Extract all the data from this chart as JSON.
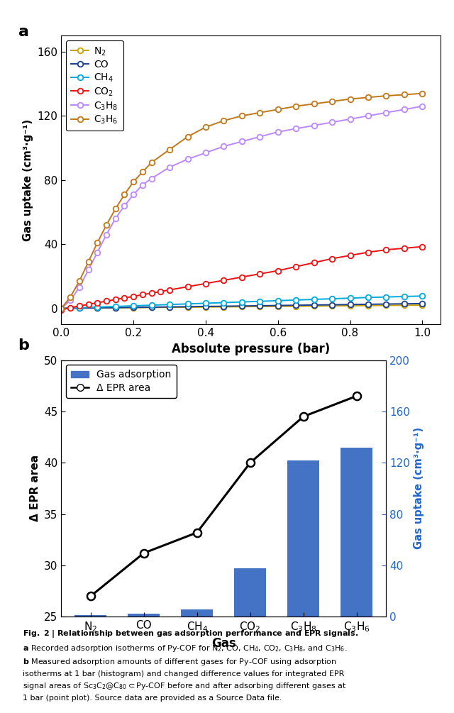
{
  "panel_a": {
    "xlabel": "Absolute pressure (bar)",
    "ylabel": "Gas uptake (cm³·g⁻¹)",
    "xlim": [
      0,
      1.05
    ],
    "ylim": [
      -10,
      170
    ],
    "yticks": [
      0,
      40,
      80,
      120,
      160
    ],
    "xticks": [
      0.0,
      0.2,
      0.4,
      0.6,
      0.8,
      1.0
    ],
    "series": {
      "N2": {
        "color": "#C8A000",
        "label": "N$_2$",
        "x": [
          0.0,
          0.05,
          0.1,
          0.15,
          0.2,
          0.25,
          0.3,
          0.35,
          0.4,
          0.45,
          0.5,
          0.55,
          0.6,
          0.65,
          0.7,
          0.75,
          0.8,
          0.85,
          0.9,
          0.95,
          1.0
        ],
        "y": [
          0.0,
          0.15,
          0.25,
          0.35,
          0.45,
          0.55,
          0.65,
          0.75,
          0.85,
          0.95,
          1.05,
          1.15,
          1.25,
          1.35,
          1.45,
          1.55,
          1.65,
          1.75,
          1.85,
          1.95,
          2.0
        ]
      },
      "CO": {
        "color": "#1a3f8f",
        "label": "CO",
        "x": [
          0.0,
          0.05,
          0.1,
          0.15,
          0.2,
          0.25,
          0.3,
          0.35,
          0.4,
          0.45,
          0.5,
          0.55,
          0.6,
          0.65,
          0.7,
          0.75,
          0.8,
          0.85,
          0.9,
          0.95,
          1.0
        ],
        "y": [
          0.0,
          0.15,
          0.3,
          0.45,
          0.6,
          0.75,
          0.9,
          1.05,
          1.2,
          1.35,
          1.5,
          1.65,
          1.8,
          1.95,
          2.1,
          2.25,
          2.4,
          2.55,
          2.7,
          2.85,
          3.0
        ]
      },
      "CH4": {
        "color": "#00AADD",
        "label": "CH$_4$",
        "x": [
          0.0,
          0.05,
          0.1,
          0.15,
          0.2,
          0.25,
          0.3,
          0.35,
          0.4,
          0.45,
          0.5,
          0.55,
          0.6,
          0.65,
          0.7,
          0.75,
          0.8,
          0.85,
          0.9,
          0.95,
          1.0
        ],
        "y": [
          0.0,
          0.4,
          0.8,
          1.2,
          1.6,
          2.0,
          2.4,
          2.8,
          3.2,
          3.6,
          4.0,
          4.4,
          4.8,
          5.2,
          5.6,
          6.0,
          6.4,
          6.8,
          7.1,
          7.4,
          7.7
        ]
      },
      "CO2": {
        "color": "#EE1111",
        "label": "CO$_2$",
        "x": [
          0.0,
          0.025,
          0.05,
          0.075,
          0.1,
          0.125,
          0.15,
          0.175,
          0.2,
          0.225,
          0.25,
          0.275,
          0.3,
          0.35,
          0.4,
          0.45,
          0.5,
          0.55,
          0.6,
          0.65,
          0.7,
          0.75,
          0.8,
          0.85,
          0.9,
          0.95,
          1.0
        ],
        "y": [
          -1.0,
          0.5,
          1.5,
          2.5,
          3.5,
          4.5,
          5.5,
          6.5,
          7.5,
          8.5,
          9.5,
          10.5,
          11.5,
          13.5,
          15.5,
          17.5,
          19.5,
          21.5,
          23.5,
          26.0,
          28.5,
          31.0,
          33.0,
          35.0,
          36.5,
          37.5,
          38.5
        ]
      },
      "C3H8": {
        "color": "#BB88FF",
        "label": "C$_3$H$_8$",
        "x": [
          0.0,
          0.025,
          0.05,
          0.075,
          0.1,
          0.125,
          0.15,
          0.175,
          0.2,
          0.225,
          0.25,
          0.3,
          0.35,
          0.4,
          0.45,
          0.5,
          0.55,
          0.6,
          0.65,
          0.7,
          0.75,
          0.8,
          0.85,
          0.9,
          0.95,
          1.0
        ],
        "y": [
          0.0,
          5.0,
          13.0,
          24.0,
          35.0,
          46.0,
          56.0,
          64.0,
          71.0,
          77.0,
          81.0,
          88.0,
          93.0,
          97.0,
          101.0,
          104.0,
          107.0,
          110.0,
          112.0,
          114.0,
          116.0,
          118.0,
          120.0,
          122.0,
          124.0,
          126.0
        ]
      },
      "C3H6": {
        "color": "#C07818",
        "label": "C$_3$H$_6$",
        "x": [
          0.0,
          0.025,
          0.05,
          0.075,
          0.1,
          0.125,
          0.15,
          0.175,
          0.2,
          0.225,
          0.25,
          0.3,
          0.35,
          0.4,
          0.45,
          0.5,
          0.55,
          0.6,
          0.65,
          0.7,
          0.75,
          0.8,
          0.85,
          0.9,
          0.95,
          1.0
        ],
        "y": [
          0.0,
          7.0,
          17.0,
          29.0,
          41.0,
          52.0,
          62.0,
          71.0,
          79.0,
          85.0,
          91.0,
          99.0,
          107.0,
          113.0,
          117.0,
          120.0,
          122.0,
          124.0,
          126.0,
          127.5,
          129.0,
          130.5,
          131.5,
          132.5,
          133.2,
          134.0
        ]
      }
    }
  },
  "panel_b": {
    "xlabel": "Gas",
    "ylabel_left": "Δ EPR area",
    "ylabel_right": "Gas uptake (cm³·g⁻¹)",
    "gas_labels": [
      "N$_2$",
      "CO",
      "CH$_4$",
      "CO$_2$",
      "C$_3$H$_8$",
      "C$_3$H$_6$"
    ],
    "bar_values_right": [
      1.5,
      2.5,
      5.5,
      38.0,
      122.0,
      132.0
    ],
    "epr_values_left": [
      27.0,
      31.2,
      33.2,
      40.0,
      44.5,
      46.5
    ],
    "bar_color": "#4472C4",
    "epr_color": "black",
    "ylim_left": [
      25,
      50
    ],
    "ylim_right": [
      0,
      200
    ],
    "yticks_left": [
      25,
      30,
      35,
      40,
      45,
      50
    ],
    "yticks_right": [
      0,
      40,
      80,
      120,
      160,
      200
    ],
    "legend_gas": "Gas adsorption",
    "legend_epr": "Δ EPR area"
  }
}
